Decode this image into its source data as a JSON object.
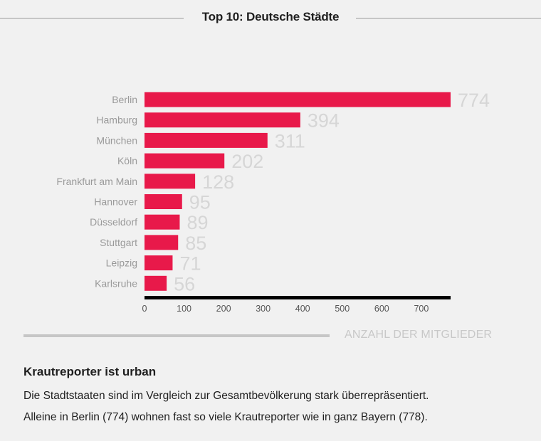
{
  "chart_data": {
    "type": "bar",
    "orientation": "horizontal",
    "title": "Top 10: Deutsche Städte",
    "xlabel": "ANZAHL DER MITGLIEDER",
    "ylabel": "",
    "categories": [
      "Berlin",
      "Hamburg",
      "München",
      "Köln",
      "Frankfurt am Main",
      "Hannover",
      "Düsseldorf",
      "Stuttgart",
      "Leipzig",
      "Karlsruhe"
    ],
    "values": [
      774,
      394,
      311,
      202,
      128,
      95,
      89,
      85,
      71,
      56
    ],
    "xlim": [
      0,
      774
    ],
    "xticks": [
      0,
      100,
      200,
      300,
      400,
      500,
      600,
      700
    ],
    "grid": false,
    "legend": "none",
    "colors": {
      "bar": "#e8194a",
      "value_label": "#d6d6d6",
      "category_label": "#9a9a9a",
      "axis": "#000000"
    }
  },
  "note": {
    "heading": "Krautreporter ist urban",
    "line1": "Die Stadtstaaten sind im Vergleich zur Gesamtbevölkerung stark überrepräsentiert.",
    "line2": "Alleine in Berlin (774) wohnen fast so viele Krautreporter wie in ganz Bayern (778)."
  }
}
